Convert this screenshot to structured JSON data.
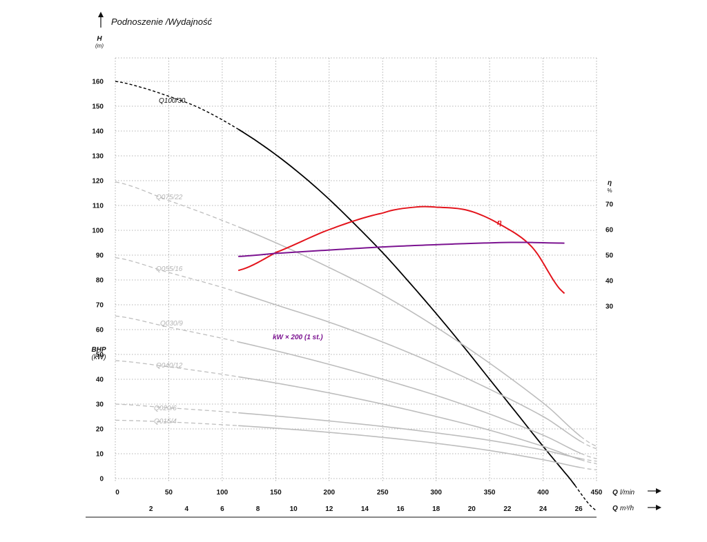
{
  "chart_data": {
    "type": "line",
    "title": "Podnoszenie /Wydajność",
    "y_axis": {
      "label": "H",
      "unit": "(m)",
      "range": [
        0,
        170
      ],
      "ticks": [
        0,
        10,
        20,
        30,
        40,
        50,
        60,
        70,
        80,
        90,
        100,
        110,
        120,
        130,
        140,
        150,
        160
      ]
    },
    "y_axis_secondary_power": {
      "label": "BHP",
      "unit": "(kW)"
    },
    "y_axis_efficiency": {
      "label": "η",
      "unit": "%",
      "ticks": [
        30,
        40,
        50,
        60,
        70
      ]
    },
    "x_axis": {
      "label": "Q",
      "unit": "l/min",
      "range": [
        0,
        450
      ],
      "ticks": [
        0,
        50,
        100,
        150,
        200,
        250,
        300,
        350,
        400,
        450
      ]
    },
    "x_axis_secondary": {
      "label": "Q",
      "unit": "m³/h",
      "ticks": [
        2,
        4,
        6,
        8,
        10,
        12,
        14,
        16,
        18,
        20,
        22,
        24,
        26
      ]
    },
    "series": [
      {
        "name": "Q100/30",
        "color": "#000000",
        "role": "head",
        "points": [
          [
            0,
            160
          ],
          [
            25,
            157.5
          ],
          [
            50,
            154
          ],
          [
            75,
            150
          ],
          [
            100,
            144.5
          ],
          [
            125,
            138
          ],
          [
            150,
            130.5
          ],
          [
            175,
            122
          ],
          [
            200,
            112.5
          ],
          [
            225,
            102
          ],
          [
            250,
            91
          ],
          [
            275,
            79
          ],
          [
            300,
            66.5
          ],
          [
            325,
            53.5
          ],
          [
            350,
            40
          ],
          [
            375,
            26.5
          ],
          [
            400,
            13
          ],
          [
            425,
            0
          ],
          [
            450,
            -13
          ]
        ],
        "dashed_ranges": [
          [
            0,
            115
          ],
          [
            430,
            450
          ]
        ]
      },
      {
        "name": "Q075/22",
        "color": "#bdbdbd",
        "role": "head",
        "points": [
          [
            0,
            119.5
          ],
          [
            50,
            112
          ],
          [
            100,
            104
          ],
          [
            150,
            95
          ],
          [
            200,
            85
          ],
          [
            250,
            74
          ],
          [
            300,
            61
          ],
          [
            350,
            46.5
          ],
          [
            400,
            30.5
          ],
          [
            450,
            13
          ]
        ],
        "dashed_ranges": [
          [
            0,
            115
          ],
          [
            435,
            450
          ]
        ]
      },
      {
        "name": "Q055/16",
        "color": "#bdbdbd",
        "role": "head",
        "points": [
          [
            0,
            89
          ],
          [
            50,
            83
          ],
          [
            100,
            77
          ],
          [
            150,
            70
          ],
          [
            200,
            63
          ],
          [
            250,
            55
          ],
          [
            300,
            46
          ],
          [
            350,
            36
          ],
          [
            400,
            25
          ],
          [
            450,
            12
          ]
        ],
        "dashed_ranges": [
          [
            0,
            115
          ],
          [
            435,
            450
          ]
        ]
      },
      {
        "name": "Q030/9",
        "color": "#bdbdbd",
        "role": "head",
        "points": [
          [
            0,
            65.5
          ],
          [
            50,
            61
          ],
          [
            100,
            56.5
          ],
          [
            150,
            51.5
          ],
          [
            200,
            46
          ],
          [
            250,
            40
          ],
          [
            300,
            33.5
          ],
          [
            350,
            26
          ],
          [
            400,
            17.5
          ],
          [
            450,
            8
          ]
        ],
        "dashed_ranges": [
          [
            0,
            115
          ],
          [
            435,
            450
          ]
        ]
      },
      {
        "name": "Q040/12",
        "color": "#bdbdbd",
        "role": "head",
        "points": [
          [
            0,
            47.5
          ],
          [
            50,
            45
          ],
          [
            100,
            42
          ],
          [
            150,
            38.5
          ],
          [
            200,
            34.5
          ],
          [
            250,
            30
          ],
          [
            300,
            25
          ],
          [
            350,
            19.5
          ],
          [
            400,
            13
          ],
          [
            450,
            6
          ]
        ],
        "dashed_ranges": [
          [
            0,
            115
          ],
          [
            435,
            450
          ]
        ]
      },
      {
        "name": "Q020/6",
        "color": "#bdbdbd",
        "role": "head",
        "points": [
          [
            0,
            30
          ],
          [
            50,
            28.5
          ],
          [
            100,
            27
          ],
          [
            150,
            25.2
          ],
          [
            200,
            23.2
          ],
          [
            250,
            21
          ],
          [
            300,
            18.4
          ],
          [
            350,
            15.4
          ],
          [
            400,
            11.5
          ],
          [
            450,
            7
          ]
        ],
        "dashed_ranges": [
          [
            0,
            115
          ],
          [
            435,
            450
          ]
        ]
      },
      {
        "name": "Q015/4",
        "color": "#bdbdbd",
        "role": "head",
        "points": [
          [
            0,
            23.5
          ],
          [
            50,
            22.8
          ],
          [
            100,
            21.7
          ],
          [
            150,
            20.3
          ],
          [
            200,
            18.6
          ],
          [
            250,
            16.6
          ],
          [
            300,
            14.2
          ],
          [
            350,
            11.3
          ],
          [
            400,
            7.6
          ],
          [
            450,
            3.5
          ]
        ],
        "dashed_ranges": [
          [
            0,
            115
          ],
          [
            435,
            450
          ]
        ]
      },
      {
        "name": "η",
        "color": "#e3141c",
        "role": "efficiency",
        "points": [
          [
            115,
            44
          ],
          [
            150,
            51
          ],
          [
            200,
            60
          ],
          [
            250,
            66.5
          ],
          [
            280,
            68.8
          ],
          [
            300,
            68.8
          ],
          [
            330,
            67.5
          ],
          [
            360,
            62
          ],
          [
            390,
            53
          ],
          [
            420,
            35
          ]
        ]
      },
      {
        "name": "kW × 200 (1 st.)",
        "color": "#7b1290",
        "role": "power",
        "points": [
          [
            115,
            49.5
          ],
          [
            150,
            50.7
          ],
          [
            200,
            52
          ],
          [
            250,
            53.2
          ],
          [
            300,
            54.1
          ],
          [
            350,
            54.8
          ],
          [
            380,
            55
          ],
          [
            420,
            54.7
          ]
        ]
      }
    ]
  }
}
